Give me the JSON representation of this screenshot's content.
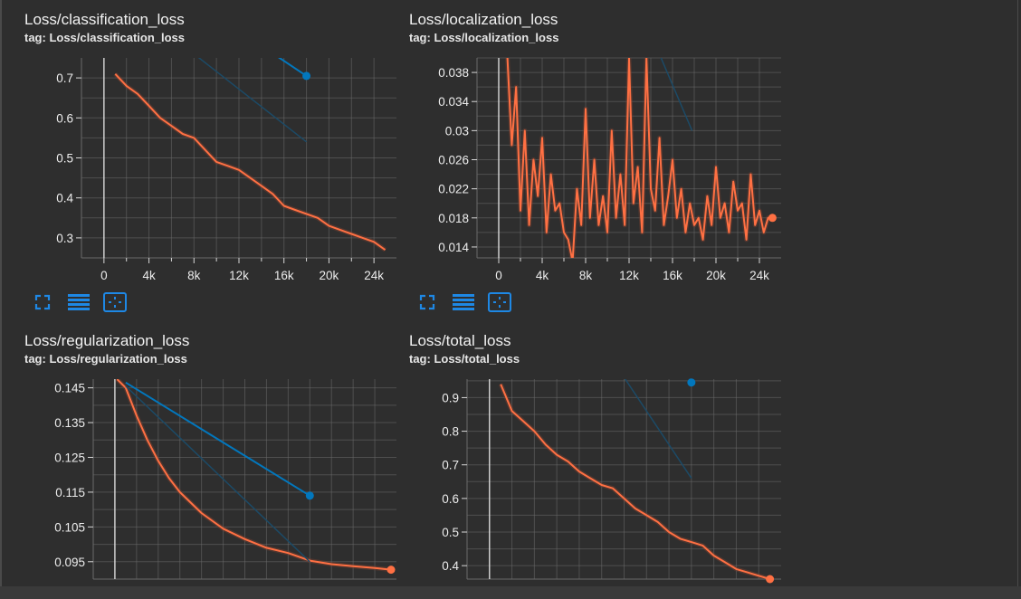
{
  "colors": {
    "background": "#2e2e2e",
    "grid": "#6a6a6a",
    "axis": "#d8d8d8",
    "orange": "#ff7043",
    "orange_raw": "#7a4030",
    "blue": "#0277bd",
    "blue_faint": "#1c4a66",
    "icon_blue": "#1e88e5"
  },
  "icons": [
    "fullscreen-icon",
    "data-list-icon",
    "fit-domain-icon"
  ],
  "chart_data": [
    {
      "id": "classification",
      "type": "line",
      "title": "Loss/classification_loss",
      "tag": "tag: Loss/classification_loss",
      "xlim": [
        -2000,
        26000
      ],
      "ylim": [
        0.25,
        0.75
      ],
      "xticks": [
        0,
        4000,
        8000,
        12000,
        16000,
        20000,
        24000
      ],
      "xtick_labels": [
        "0",
        "4k",
        "8k",
        "12k",
        "16k",
        "20k",
        "24k"
      ],
      "yticks": [
        0.3,
        0.4,
        0.5,
        0.6,
        0.7
      ],
      "ytick_labels": [
        "0.3",
        "0.4",
        "0.5",
        "0.6",
        "0.7"
      ],
      "series": [
        {
          "color": "orange",
          "x": [
            1000,
            2000,
            3000,
            4000,
            5000,
            6000,
            7000,
            8000,
            9000,
            10000,
            11000,
            12000,
            13000,
            14000,
            15000,
            16000,
            17000,
            18000,
            19000,
            20000,
            21000,
            22000,
            23000,
            24000,
            25000
          ],
          "y": [
            0.71,
            0.68,
            0.66,
            0.63,
            0.6,
            0.58,
            0.56,
            0.55,
            0.52,
            0.49,
            0.48,
            0.47,
            0.45,
            0.43,
            0.41,
            0.38,
            0.37,
            0.36,
            0.35,
            0.33,
            0.32,
            0.31,
            0.3,
            0.29,
            0.27
          ],
          "end_marker": false
        },
        {
          "color": "blue",
          "x": [
            14000,
            18000
          ],
          "y": [
            0.78,
            0.705
          ],
          "end_marker": true
        },
        {
          "color": "blue_faint",
          "x": [
            8000,
            18000
          ],
          "y": [
            0.76,
            0.54
          ],
          "end_marker": false
        }
      ]
    },
    {
      "id": "localization",
      "type": "line",
      "title": "Loss/localization_loss",
      "tag": "tag: Loss/localization_loss",
      "xlim": [
        -2000,
        26000
      ],
      "ylim": [
        0.0125,
        0.04
      ],
      "xticks": [
        0,
        4000,
        8000,
        12000,
        16000,
        20000,
        24000
      ],
      "xtick_labels": [
        "0",
        "4k",
        "8k",
        "12k",
        "16k",
        "20k",
        "24k"
      ],
      "yticks": [
        0.014,
        0.018,
        0.022,
        0.026,
        0.03,
        0.034,
        0.038
      ],
      "ytick_labels": [
        "0.014",
        "0.018",
        "0.022",
        "0.026",
        "0.03",
        "0.034",
        "0.038"
      ],
      "series": [
        {
          "color": "orange",
          "x": [
            800,
            1200,
            1600,
            2000,
            2400,
            2800,
            3200,
            3600,
            4000,
            4400,
            4800,
            5200,
            5600,
            6000,
            6400,
            6800,
            7200,
            7600,
            8000,
            8400,
            8800,
            9200,
            9600,
            10000,
            10400,
            10800,
            11200,
            11600,
            12000,
            12400,
            12800,
            13200,
            13600,
            14000,
            14400,
            14800,
            15200,
            15600,
            16000,
            16400,
            16800,
            17200,
            17600,
            18000,
            18400,
            18800,
            19200,
            19600,
            20000,
            20400,
            20800,
            21200,
            21600,
            22000,
            22400,
            22800,
            23200,
            23600,
            24000,
            24400,
            24800,
            25200
          ],
          "y": [
            0.04,
            0.028,
            0.036,
            0.019,
            0.03,
            0.017,
            0.026,
            0.021,
            0.029,
            0.016,
            0.024,
            0.019,
            0.02,
            0.016,
            0.015,
            0.012,
            0.022,
            0.017,
            0.033,
            0.018,
            0.026,
            0.017,
            0.021,
            0.016,
            0.03,
            0.018,
            0.024,
            0.017,
            0.04,
            0.02,
            0.025,
            0.016,
            0.04,
            0.022,
            0.019,
            0.029,
            0.017,
            0.021,
            0.026,
            0.018,
            0.022,
            0.016,
            0.02,
            0.017,
            0.018,
            0.015,
            0.021,
            0.017,
            0.025,
            0.018,
            0.02,
            0.016,
            0.023,
            0.019,
            0.02,
            0.015,
            0.024,
            0.017,
            0.019,
            0.016,
            0.018,
            0.018
          ],
          "end_marker": true
        },
        {
          "color": "blue_faint",
          "x": [
            14800,
            17800
          ],
          "y": [
            0.0405,
            0.03
          ],
          "end_marker": false
        }
      ]
    },
    {
      "id": "regularization",
      "type": "line",
      "title": "Loss/regularization_loss",
      "tag": "tag: Loss/regularization_loss",
      "xlim": [
        -2000,
        26000
      ],
      "ylim": [
        0.09,
        0.1475
      ],
      "xticks": [],
      "xtick_labels": [],
      "yticks": [
        0.095,
        0.105,
        0.115,
        0.125,
        0.135,
        0.145
      ],
      "ytick_labels": [
        "0.095",
        "0.105",
        "0.115",
        "0.125",
        "0.135",
        "0.145"
      ],
      "series": [
        {
          "color": "orange",
          "x": [
            200,
            1000,
            2000,
            3000,
            4000,
            5000,
            6000,
            8000,
            10000,
            12000,
            14000,
            16000,
            18000,
            20000,
            22000,
            24000,
            25500
          ],
          "y": [
            0.1475,
            0.145,
            0.137,
            0.13,
            0.124,
            0.119,
            0.115,
            0.109,
            0.1045,
            0.1015,
            0.099,
            0.0975,
            0.0953,
            0.0943,
            0.0937,
            0.0932,
            0.0927
          ],
          "end_marker": true
        },
        {
          "color": "blue",
          "x": [
            1000,
            18000
          ],
          "y": [
            0.1465,
            0.114
          ],
          "end_marker": true
        },
        {
          "color": "blue_faint",
          "x": [
            1000,
            18000
          ],
          "y": [
            0.1455,
            0.095
          ],
          "end_marker": false
        }
      ]
    },
    {
      "id": "total",
      "type": "line",
      "title": "Loss/total_loss",
      "tag": "tag: Loss/total_loss",
      "xlim": [
        -2000,
        26000
      ],
      "ylim": [
        0.36,
        0.955
      ],
      "xticks": [],
      "xtick_labels": [],
      "yticks": [
        0.4,
        0.5,
        0.6,
        0.7,
        0.8,
        0.9
      ],
      "ytick_labels": [
        "0.4",
        "0.5",
        "0.6",
        "0.7",
        "0.8",
        "0.9"
      ],
      "series": [
        {
          "color": "orange",
          "x": [
            1000,
            2000,
            3000,
            4000,
            5000,
            6000,
            7000,
            8000,
            9000,
            10000,
            11000,
            12000,
            13000,
            14000,
            15000,
            16000,
            17000,
            18000,
            19000,
            20000,
            21000,
            22000,
            23000,
            24000,
            25000
          ],
          "y": [
            0.94,
            0.86,
            0.83,
            0.8,
            0.76,
            0.73,
            0.71,
            0.68,
            0.66,
            0.64,
            0.63,
            0.6,
            0.57,
            0.55,
            0.53,
            0.5,
            0.48,
            0.47,
            0.46,
            0.43,
            0.41,
            0.39,
            0.38,
            0.37,
            0.36
          ],
          "end_marker": true
        },
        {
          "color": "blue",
          "x": [
            18000,
            18000
          ],
          "y": [
            0.955,
            0.945
          ],
          "end_marker": true
        },
        {
          "color": "blue_faint",
          "x": [
            12000,
            18000
          ],
          "y": [
            0.96,
            0.66
          ],
          "end_marker": false
        }
      ]
    }
  ]
}
